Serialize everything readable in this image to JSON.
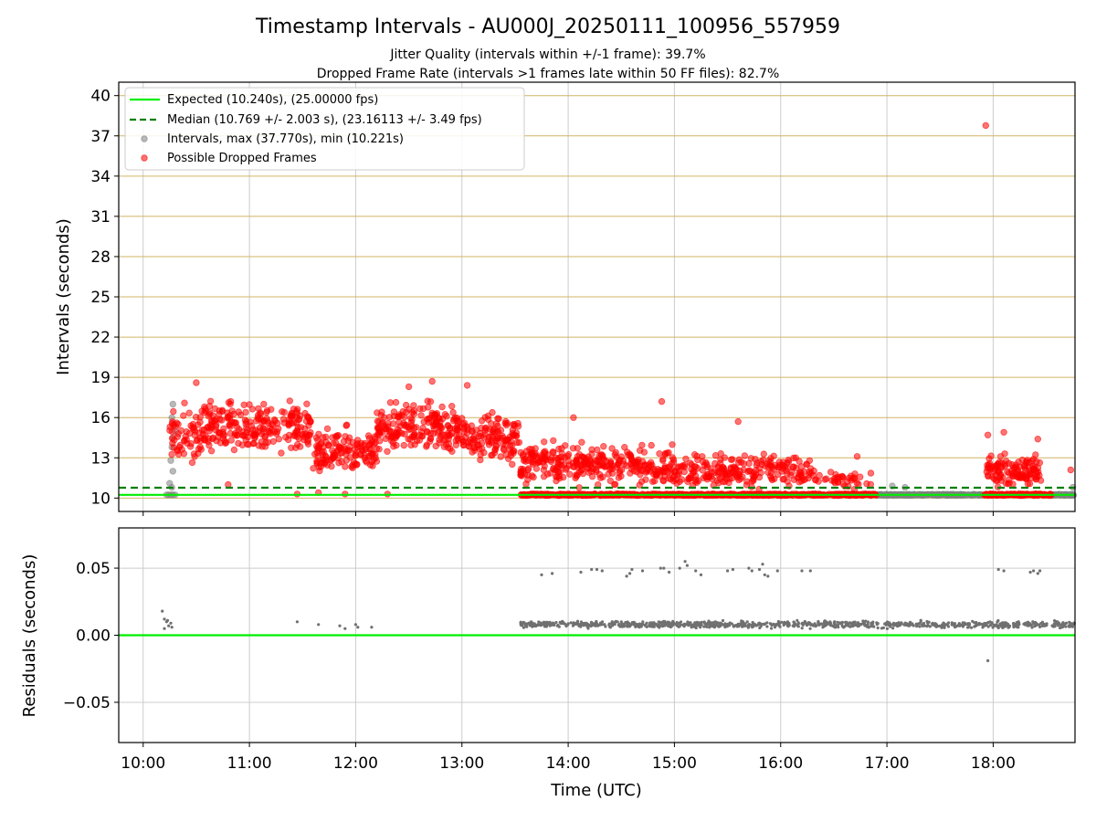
{
  "title": "Timestamp Intervals - AU000J_20250111_100956_557959",
  "subtitle_1": "Jitter Quality (intervals within +/-1 frame): 39.7%",
  "subtitle_2": "Dropped Frame Rate (intervals >1 frames late within 50 FF files): 82.7%",
  "colors": {
    "expected": "#00ee00",
    "median": "#007f00",
    "intervals": "#808080",
    "dropped": "#ff0000",
    "hgrid_top": "#d2b466",
    "grid": "#cccccc"
  },
  "chart_data": [
    {
      "type": "scatter",
      "ylabel": "Intervals (seconds)",
      "xlim_hours": [
        9.77,
        18.77
      ],
      "ylim": [
        9,
        41
      ],
      "yticks": [
        10,
        13,
        16,
        19,
        22,
        25,
        28,
        31,
        34,
        37,
        40
      ],
      "ytick_labels": [
        "10",
        "13",
        "16",
        "19",
        "22",
        "25",
        "28",
        "31",
        "34",
        "37",
        "40"
      ],
      "grid": true,
      "legend_placement": "upper-left",
      "legend": [
        "Expected (10.240s), (25.00000 fps)",
        "Median (10.769 +/- 2.003 s), (23.16113 +/- 3.49 fps)",
        "Intervals, max (37.770s), min (10.221s)",
        "Possible Dropped Frames"
      ],
      "expected_interval": 10.24,
      "median_interval": 10.769,
      "max_interval": 37.77,
      "min_interval": 10.221,
      "series": [
        {
          "name": "Possible Dropped Frames",
          "clusters": [
            {
              "x_range": [
                10.25,
                10.55
              ],
              "y_center": 14.5,
              "y_spread": 2.0,
              "count": 60
            },
            {
              "x_range": [
                10.55,
                11.6
              ],
              "y_center": 15.2,
              "y_spread": 1.8,
              "count": 240
            },
            {
              "x_range": [
                11.6,
                12.2
              ],
              "y_center": 13.5,
              "y_spread": 1.5,
              "count": 140
            },
            {
              "x_range": [
                12.2,
                13.0
              ],
              "y_center": 15.3,
              "y_spread": 1.7,
              "count": 200
            },
            {
              "x_range": [
                13.0,
                13.55
              ],
              "y_center": 14.5,
              "y_spread": 1.7,
              "count": 130
            },
            {
              "x_range": [
                13.55,
                14.2
              ],
              "y_center": 12.6,
              "y_spread": 1.4,
              "count": 150
            },
            {
              "x_range": [
                14.2,
                15.0
              ],
              "y_center": 12.4,
              "y_spread": 1.3,
              "count": 160
            },
            {
              "x_range": [
                15.0,
                16.3
              ],
              "y_center": 12.1,
              "y_spread": 1.1,
              "count": 220
            },
            {
              "x_range": [
                16.3,
                16.85
              ],
              "y_center": 11.3,
              "y_spread": 0.6,
              "count": 40
            },
            {
              "x_range": [
                17.93,
                18.45
              ],
              "y_center": 12.0,
              "y_spread": 1.0,
              "count": 120
            }
          ],
          "bands": [
            {
              "x_range": [
                13.55,
                16.9
              ],
              "y": 10.25,
              "count": 650
            },
            {
              "x_range": [
                17.92,
                18.55
              ],
              "y": 10.25,
              "count": 140
            }
          ],
          "points": [
            {
              "x": 17.93,
              "y": 37.77
            },
            {
              "x": 14.88,
              "y": 17.2
            },
            {
              "x": 12.72,
              "y": 18.7
            },
            {
              "x": 12.5,
              "y": 18.3
            },
            {
              "x": 10.5,
              "y": 18.6
            },
            {
              "x": 13.05,
              "y": 18.4
            },
            {
              "x": 16.72,
              "y": 13.1
            },
            {
              "x": 18.73,
              "y": 12.1
            },
            {
              "x": 15.6,
              "y": 15.7
            },
            {
              "x": 14.05,
              "y": 16.0
            },
            {
              "x": 17.95,
              "y": 14.7
            },
            {
              "x": 18.1,
              "y": 14.9
            },
            {
              "x": 18.42,
              "y": 14.4
            },
            {
              "x": 11.45,
              "y": 10.3
            },
            {
              "x": 11.65,
              "y": 10.4
            },
            {
              "x": 11.9,
              "y": 10.3
            },
            {
              "x": 12.3,
              "y": 10.3
            },
            {
              "x": 10.8,
              "y": 11.0
            }
          ]
        },
        {
          "name": "Intervals",
          "bands": [
            {
              "x_range": [
                16.9,
                17.9
              ],
              "y": 10.24,
              "count": 240
            },
            {
              "x_range": [
                18.55,
                18.77
              ],
              "y": 10.24,
              "count": 40
            }
          ],
          "points": [
            {
              "x": 10.28,
              "y": 17.0
            },
            {
              "x": 10.27,
              "y": 16.0
            },
            {
              "x": 10.29,
              "y": 15.5
            },
            {
              "x": 10.3,
              "y": 15.0
            },
            {
              "x": 10.28,
              "y": 14.5
            },
            {
              "x": 10.27,
              "y": 13.8
            },
            {
              "x": 10.26,
              "y": 12.8
            },
            {
              "x": 10.28,
              "y": 12.0
            },
            {
              "x": 10.25,
              "y": 11.1
            },
            {
              "x": 10.27,
              "y": 10.8
            },
            {
              "x": 10.22,
              "y": 10.24
            },
            {
              "x": 10.24,
              "y": 10.24
            },
            {
              "x": 10.26,
              "y": 10.24
            },
            {
              "x": 10.28,
              "y": 10.24
            },
            {
              "x": 10.3,
              "y": 10.24
            },
            {
              "x": 17.05,
              "y": 10.9
            },
            {
              "x": 17.17,
              "y": 10.8
            },
            {
              "x": 18.75,
              "y": 10.8
            }
          ]
        }
      ]
    },
    {
      "type": "scatter",
      "xlabel": "Time (UTC)",
      "ylabel": "Residuals (seconds)",
      "xlim_hours": [
        9.77,
        18.77
      ],
      "ylim": [
        -0.08,
        0.08
      ],
      "yticks": [
        -0.05,
        0.0,
        0.05
      ],
      "ytick_labels": [
        "−0.05",
        "0.00",
        "0.05"
      ],
      "xtick_labels": [
        "10:00",
        "11:00",
        "12:00",
        "13:00",
        "14:00",
        "15:00",
        "16:00",
        "17:00",
        "18:00"
      ],
      "grid": true,
      "reference_line": 0.0,
      "series": [
        {
          "name": "Residuals",
          "bands": [
            {
              "x_range": [
                13.55,
                18.77
              ],
              "y_center": 0.008,
              "y_spread": 0.003,
              "count": 900
            }
          ],
          "points": [
            {
              "x": 10.18,
              "y": 0.018
            },
            {
              "x": 10.2,
              "y": 0.012
            },
            {
              "x": 10.22,
              "y": 0.01
            },
            {
              "x": 10.24,
              "y": 0.007
            },
            {
              "x": 10.26,
              "y": 0.009
            },
            {
              "x": 10.2,
              "y": 0.005
            },
            {
              "x": 10.23,
              "y": 0.011
            },
            {
              "x": 10.27,
              "y": 0.006
            },
            {
              "x": 11.45,
              "y": 0.01
            },
            {
              "x": 11.65,
              "y": 0.008
            },
            {
              "x": 11.85,
              "y": 0.007
            },
            {
              "x": 11.9,
              "y": 0.005
            },
            {
              "x": 12.0,
              "y": 0.008
            },
            {
              "x": 12.02,
              "y": 0.006
            },
            {
              "x": 12.15,
              "y": 0.006
            },
            {
              "x": 13.75,
              "y": 0.045
            },
            {
              "x": 13.85,
              "y": 0.046
            },
            {
              "x": 14.12,
              "y": 0.047
            },
            {
              "x": 14.22,
              "y": 0.049
            },
            {
              "x": 14.27,
              "y": 0.049
            },
            {
              "x": 14.32,
              "y": 0.048
            },
            {
              "x": 14.55,
              "y": 0.044
            },
            {
              "x": 14.58,
              "y": 0.046
            },
            {
              "x": 14.6,
              "y": 0.049
            },
            {
              "x": 14.7,
              "y": 0.048
            },
            {
              "x": 14.87,
              "y": 0.05
            },
            {
              "x": 14.9,
              "y": 0.05
            },
            {
              "x": 14.95,
              "y": 0.047
            },
            {
              "x": 15.05,
              "y": 0.05
            },
            {
              "x": 15.1,
              "y": 0.055
            },
            {
              "x": 15.12,
              "y": 0.052
            },
            {
              "x": 15.2,
              "y": 0.048
            },
            {
              "x": 15.25,
              "y": 0.045
            },
            {
              "x": 15.5,
              "y": 0.048
            },
            {
              "x": 15.55,
              "y": 0.049
            },
            {
              "x": 15.7,
              "y": 0.05
            },
            {
              "x": 15.73,
              "y": 0.048
            },
            {
              "x": 15.8,
              "y": 0.049
            },
            {
              "x": 15.83,
              "y": 0.053
            },
            {
              "x": 15.85,
              "y": 0.045
            },
            {
              "x": 15.88,
              "y": 0.044
            },
            {
              "x": 15.97,
              "y": 0.048
            },
            {
              "x": 16.2,
              "y": 0.048
            },
            {
              "x": 16.28,
              "y": 0.048
            },
            {
              "x": 17.95,
              "y": -0.019
            },
            {
              "x": 18.05,
              "y": 0.049
            },
            {
              "x": 18.1,
              "y": 0.048
            },
            {
              "x": 18.35,
              "y": 0.047
            },
            {
              "x": 18.38,
              "y": 0.048
            },
            {
              "x": 18.42,
              "y": 0.046
            },
            {
              "x": 18.44,
              "y": 0.048
            }
          ]
        }
      ]
    }
  ]
}
